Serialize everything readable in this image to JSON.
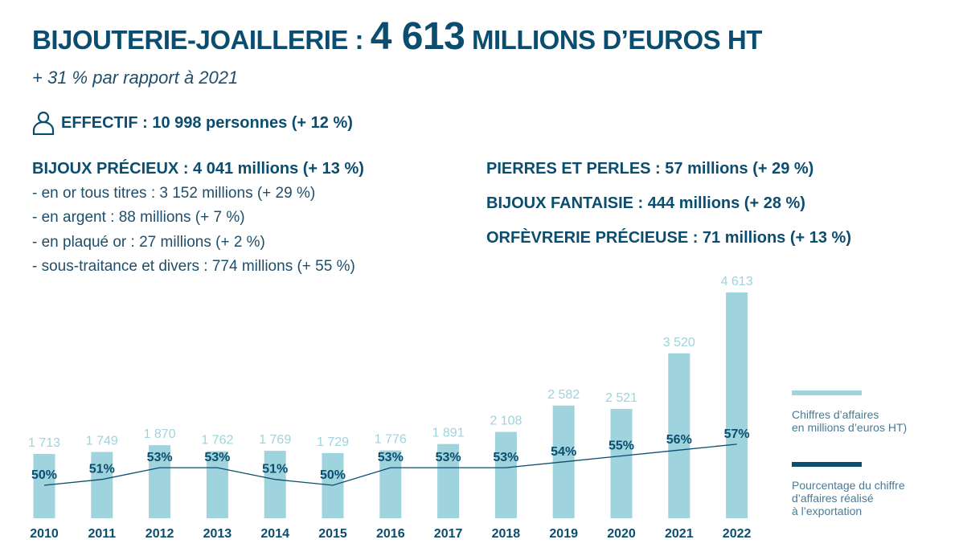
{
  "header": {
    "title_prefix": "BIJOUTERIE-JOAILLERIE :",
    "title_value": "4 613",
    "title_suffix": "MILLIONS D’EUROS HT",
    "subtitle": "+ 31 % par rapport à 2021"
  },
  "staff": {
    "icon": "person-icon",
    "text": "EFFECTIF : 10 998 personnes (+ 12 %)"
  },
  "left": {
    "heading": "BIJOUX PRÉCIEUX : 4 041 millions (+ 13 %)",
    "items": [
      "- en or tous titres : 3 152 millions (+ 29 %)",
      "- en argent : 88 millions (+ 7 %)",
      "- en plaqué or : 27 millions (+ 2 %)",
      "- sous-traitance et divers : 774 millions (+ 55 %)"
    ]
  },
  "right": {
    "items": [
      "PIERRES ET PERLES : 57 millions (+ 29 %)",
      "BIJOUX FANTAISIE : 444 millions (+ 28 %)",
      "ORFÈVRERIE PRÉCIEUSE : 71 millions (+ 13 %)"
    ]
  },
  "chart_data": {
    "type": "bar",
    "categories": [
      "2010",
      "2011",
      "2012",
      "2013",
      "2014",
      "2015",
      "2016",
      "2017",
      "2018",
      "2019",
      "2020",
      "2021",
      "2022"
    ],
    "series": [
      {
        "name": "Chiffres d’affaires en millions d’euros HT)",
        "type": "bar",
        "color": "#9fd3dd",
        "values": [
          1713,
          1749,
          1870,
          1762,
          1769,
          1729,
          1776,
          1891,
          2108,
          2582,
          2521,
          3520,
          4613
        ],
        "labels": [
          "1 713",
          "1 749",
          "1 870",
          "1 762",
          "1 769",
          "1 729",
          "1 776",
          "1 891",
          "2 108",
          "2 582",
          "2 521",
          "3 520",
          "4 613"
        ]
      },
      {
        "name": "Pourcentage du chiffre d’affaires réalisé à l’exportation",
        "type": "line",
        "color": "#0b4d6f",
        "values": [
          50,
          51,
          53,
          53,
          51,
          50,
          53,
          53,
          53,
          54,
          55,
          56,
          57
        ],
        "labels": [
          "50%",
          "51%",
          "53%",
          "53%",
          "51%",
          "50%",
          "53%",
          "53%",
          "53%",
          "54%",
          "55%",
          "56%",
          "57%"
        ]
      }
    ],
    "legend": {
      "position": "right",
      "entries": [
        [
          "Chiffres d’affaires",
          "en millions d’euros HT)"
        ],
        [
          "Pourcentage du chiffre",
          "d’affaires réalisé",
          "à l’exportation"
        ]
      ]
    }
  }
}
